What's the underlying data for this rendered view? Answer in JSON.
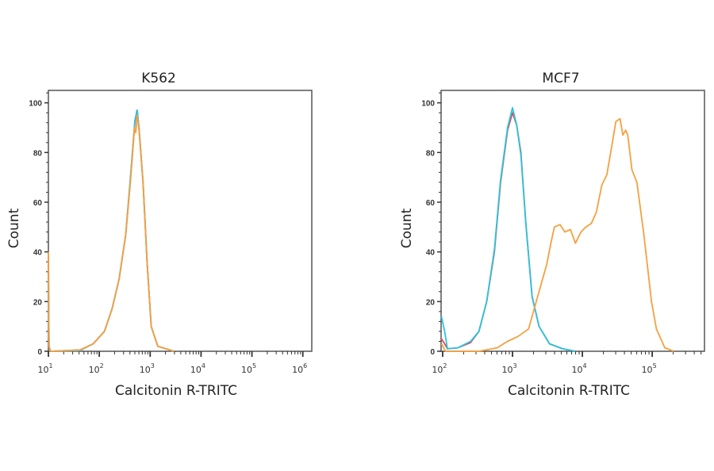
{
  "chart_data": [
    {
      "type": "line",
      "title": "K562",
      "xlabel": "Calcitonin R-TRITC",
      "ylabel": "Count",
      "xscale": "log",
      "xlim": [
        10,
        1500000
      ],
      "ylim": [
        0,
        105
      ],
      "grid": false,
      "x_ticks": [
        10,
        100,
        1000,
        10000,
        100000,
        1000000
      ],
      "x_tick_labels": [
        {
          "base": "10",
          "exp": "1"
        },
        {
          "base": "10",
          "exp": "2"
        },
        {
          "base": "10",
          "exp": "3"
        },
        {
          "base": "10",
          "exp": "4"
        },
        {
          "base": "10",
          "exp": "5"
        },
        {
          "base": "10",
          "exp": "6"
        }
      ],
      "y_ticks": [
        0,
        20,
        40,
        60,
        80,
        100
      ],
      "y_tick_labels": [
        "0",
        "20",
        "40",
        "60",
        "80",
        "100"
      ],
      "series": [
        {
          "color": "#e8474f",
          "x": [
            10,
            10.3,
            11,
            42,
            76,
            126,
            178,
            245,
            331,
            417,
            501,
            550,
            603,
            724,
            871,
            1047,
            1413,
            2951
          ],
          "y": [
            38,
            2,
            0,
            0.5,
            3,
            8,
            17,
            29,
            47,
            71,
            92,
            97,
            90,
            68,
            36,
            10,
            2,
            0
          ]
        },
        {
          "color": "#29c4e0",
          "x": [
            10,
            10.3,
            11,
            42,
            76,
            126,
            178,
            245,
            331,
            417,
            501,
            560,
            603,
            724,
            871,
            1047,
            1413,
            2951
          ],
          "y": [
            30,
            2,
            0,
            0.3,
            3,
            8,
            17,
            29,
            47,
            72,
            93,
            97,
            90,
            68,
            36,
            10,
            2,
            0
          ]
        },
        {
          "color": "#f5a040",
          "x": [
            10,
            10.3,
            11,
            42,
            76,
            126,
            178,
            245,
            331,
            417,
            490,
            520,
            560,
            603,
            724,
            871,
            1047,
            1413,
            2951
          ],
          "y": [
            40,
            2,
            0,
            0.5,
            3,
            8,
            17,
            29,
            47,
            70,
            90,
            88,
            95,
            89,
            68,
            36,
            10,
            2,
            0
          ]
        }
      ]
    },
    {
      "type": "line",
      "title": "MCF7",
      "xlabel": "Calcitonin R-TRITC",
      "ylabel": "Count",
      "xscale": "log",
      "xlim": [
        95,
        560000
      ],
      "ylim": [
        0,
        105
      ],
      "grid": false,
      "x_ticks": [
        100,
        1000,
        10000,
        100000
      ],
      "x_tick_labels": [
        {
          "base": "10",
          "exp": "2"
        },
        {
          "base": "10",
          "exp": "3"
        },
        {
          "base": "10",
          "exp": "4"
        },
        {
          "base": "10",
          "exp": "5"
        }
      ],
      "y_ticks": [
        0,
        20,
        40,
        60,
        80,
        100
      ],
      "y_tick_labels": [
        "0",
        "20",
        "40",
        "60",
        "80",
        "100"
      ],
      "series": [
        {
          "color": "#e8474f",
          "x": [
            96,
            107,
            117,
            166,
            251,
            331,
            427,
            550,
            676,
            851,
            1000,
            1148,
            1318,
            1549,
            1905,
            2399,
            3388,
            5248,
            7943
          ],
          "y": [
            5,
            3,
            1,
            1.4,
            3.5,
            8,
            20,
            40,
            68,
            89,
            96,
            91,
            80,
            52,
            22,
            10,
            3,
            1,
            0
          ]
        },
        {
          "color": "#29c4e0",
          "x": [
            96,
            107,
            117,
            166,
            251,
            331,
            427,
            550,
            676,
            851,
            1000,
            1148,
            1318,
            1549,
            1905,
            2399,
            3388,
            5248,
            7943
          ],
          "y": [
            14,
            8,
            1,
            1.4,
            4,
            8,
            20,
            41,
            69,
            90,
            98,
            91,
            79,
            52,
            22,
            10,
            3,
            1,
            0
          ]
        },
        {
          "color": "#f5a040",
          "x": [
            96,
            110,
            200,
            329,
            603,
            851,
            1202,
            1698,
            2089,
            2512,
            3090,
            3548,
            3981,
            4786,
            5623,
            6761,
            7943,
            9550,
            11220,
            13490,
            15850,
            19050,
            22390,
            26920,
            30200,
            34670,
            38020,
            41690,
            44670,
            51290,
            60260,
            75860,
            97720,
            114800,
            151400,
            204200
          ],
          "y": [
            3,
            0,
            0,
            0,
            1.4,
            4,
            6,
            9,
            18,
            26,
            35,
            43.5,
            50,
            51,
            48,
            49,
            43.5,
            48,
            50,
            51.5,
            56,
            67,
            71,
            84,
            92.5,
            93.6,
            87,
            89,
            87,
            73,
            68,
            47,
            20,
            9,
            1.4,
            0
          ]
        }
      ]
    }
  ]
}
